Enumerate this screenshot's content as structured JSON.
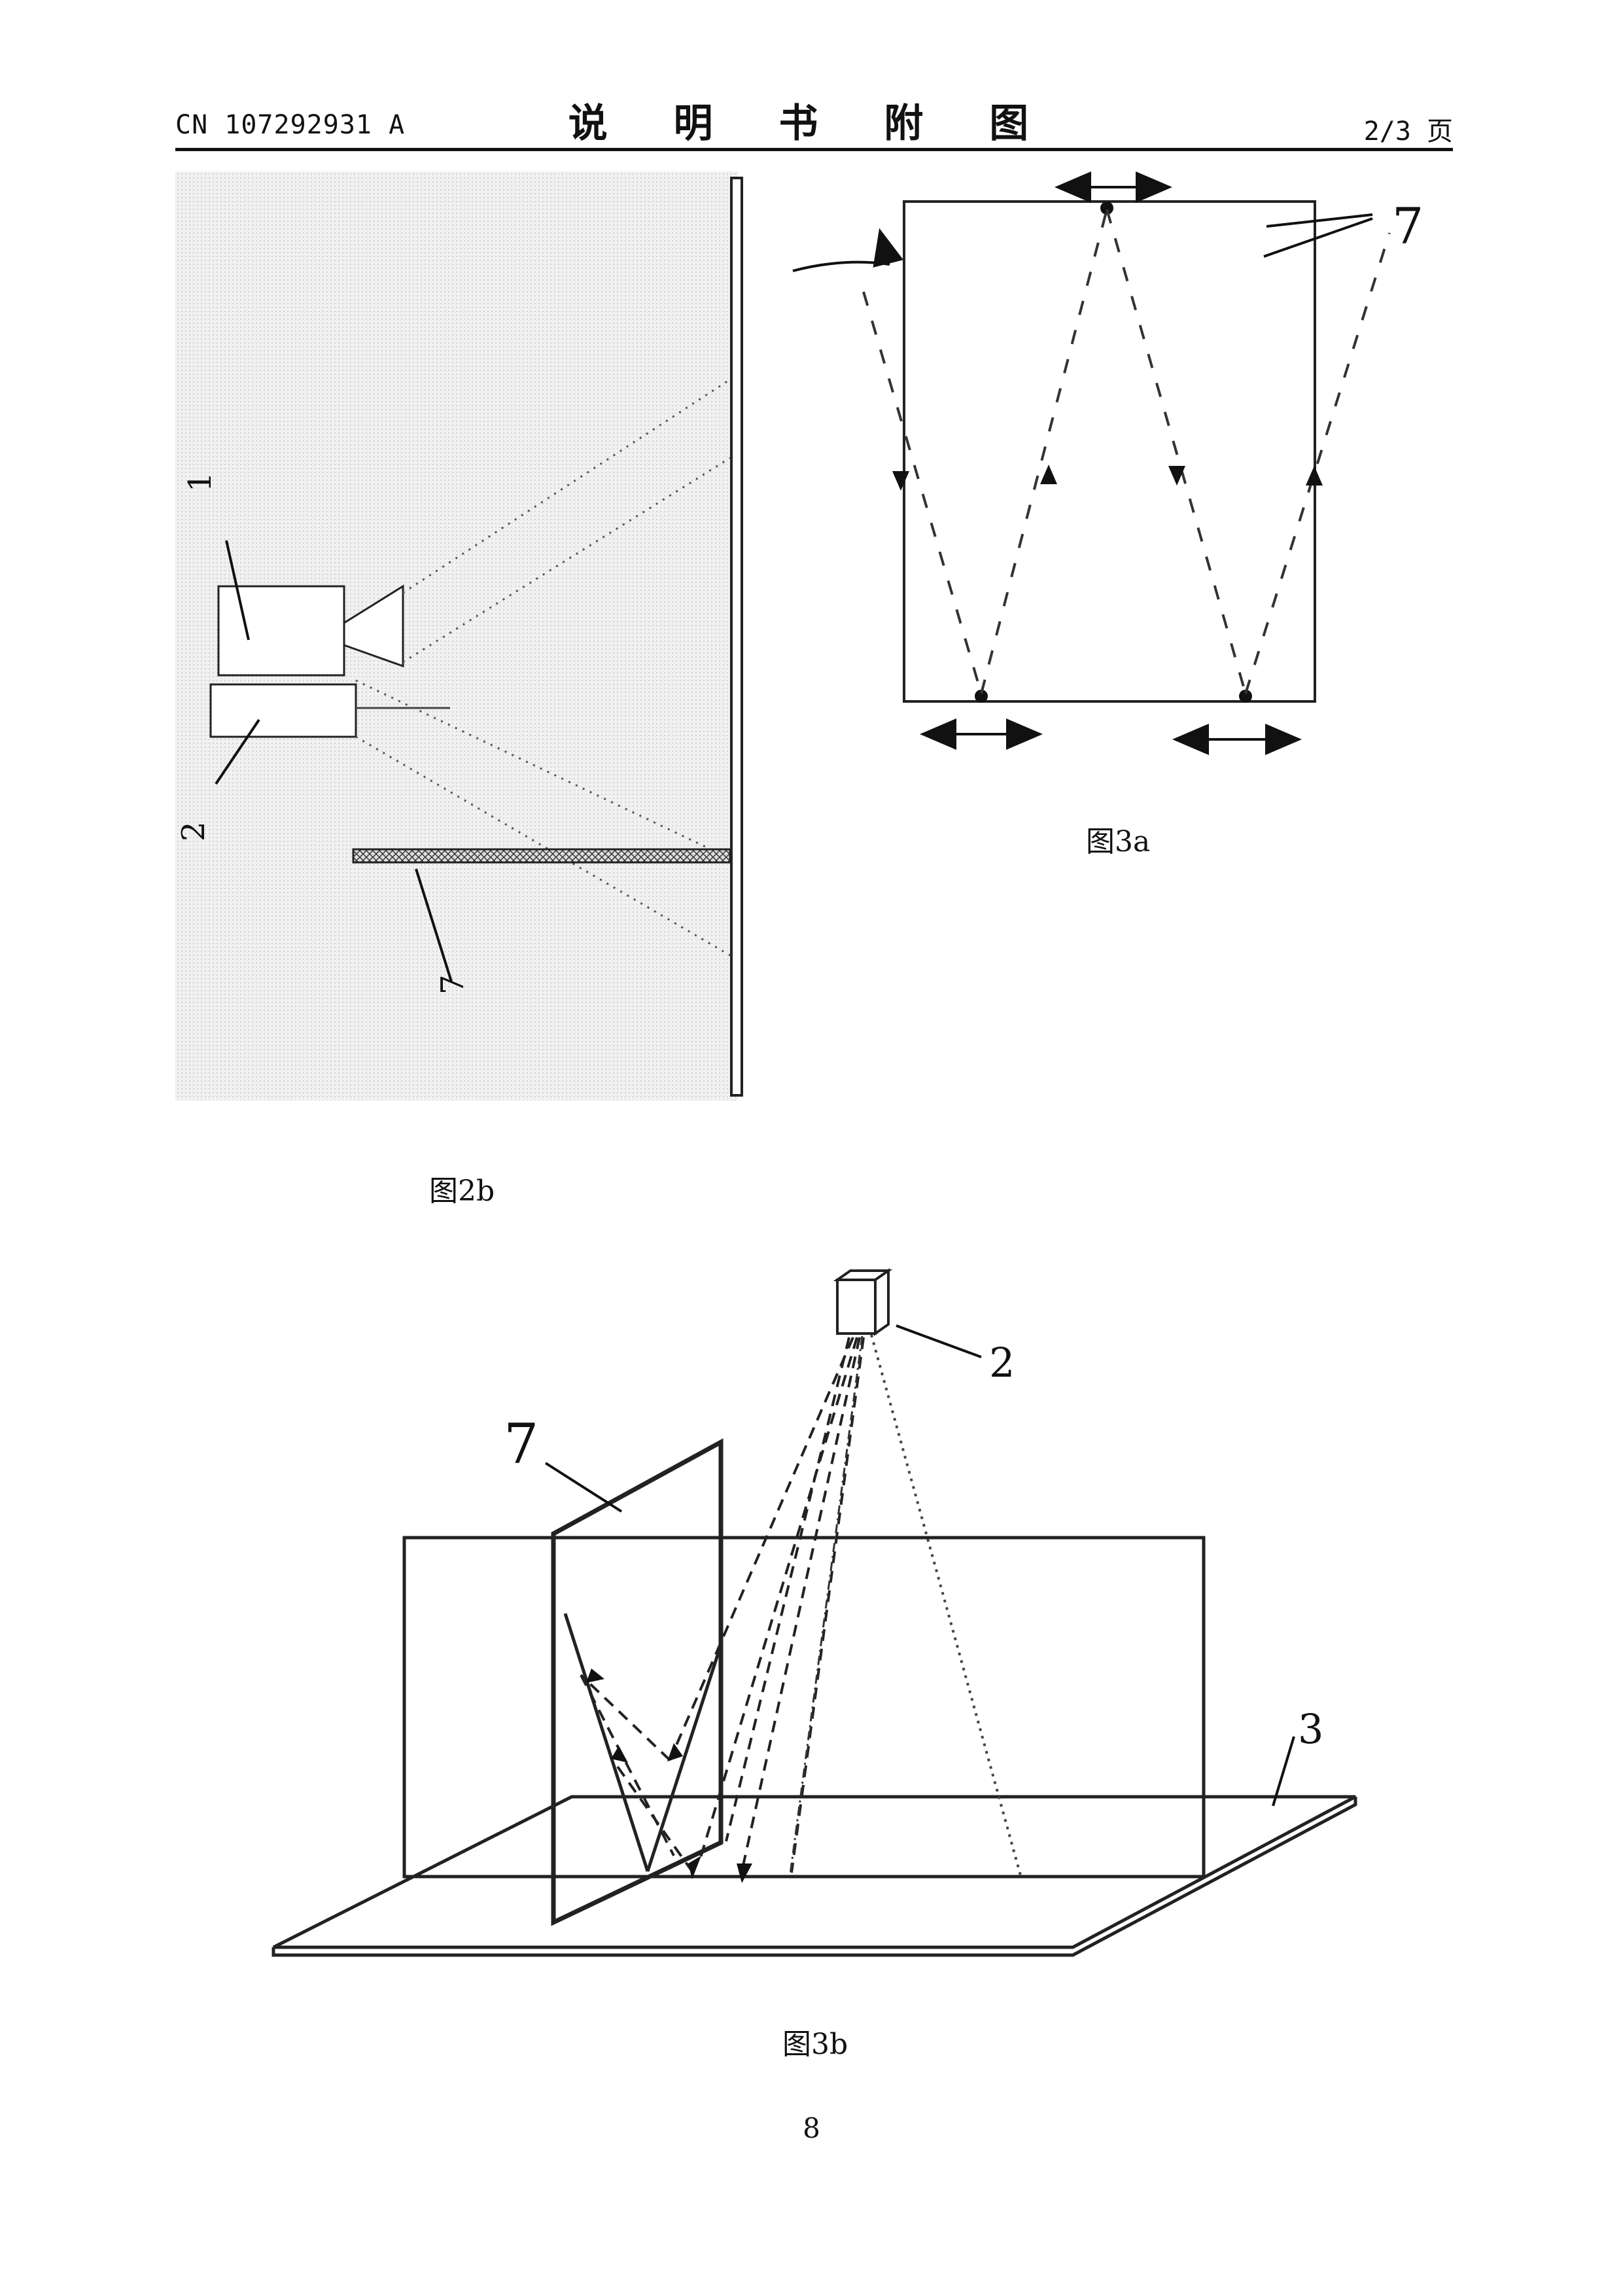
{
  "header": {
    "publication_number": "CN 107292931 A",
    "section_title": "说 明 书 附 图",
    "page_indicator": "2/3 页"
  },
  "figures": {
    "fig2b": {
      "caption": "图2b",
      "labels": {
        "l1": "1",
        "l2": "2",
        "l7": "7"
      }
    },
    "fig3a": {
      "caption": "图3a",
      "labels": {
        "l7": "7"
      }
    },
    "fig3b": {
      "caption": "图3b",
      "labels": {
        "l2": "2",
        "l7": "7",
        "l3": "3"
      }
    }
  },
  "footer": {
    "page_number": "8"
  }
}
